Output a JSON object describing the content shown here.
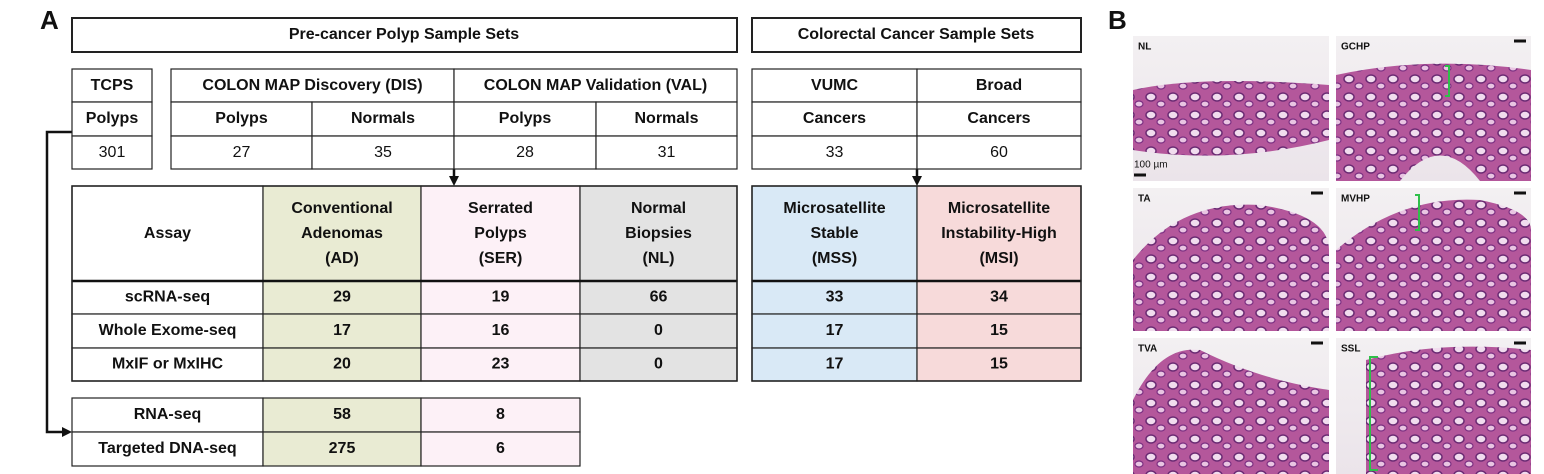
{
  "panel_labels": [
    "A",
    "B"
  ],
  "groups": [
    "Pre-cancer Polyp Sample Sets",
    "Colorectal Cancer Sample Sets"
  ],
  "sample_sets": {
    "tcps": {
      "title": "TCPS",
      "subheader": "Polyps",
      "count": 301
    },
    "colon_map": {
      "studies": [
        "COLON MAP Discovery (DIS)",
        "COLON MAP Validation (VAL)"
      ],
      "subheaders": [
        "Polyps",
        "Normals",
        "Polyps",
        "Normals"
      ],
      "counts": [
        27,
        35,
        28,
        31
      ]
    },
    "cancer": {
      "studies": [
        "VUMC",
        "Broad"
      ],
      "subheaders": [
        "Cancers",
        "Cancers"
      ],
      "counts": [
        33,
        60
      ]
    }
  },
  "precancer_assays": {
    "columns": [
      [
        "Assay"
      ],
      [
        "Conventional",
        "Adenomas",
        "(AD)"
      ],
      [
        "Serrated",
        "Polyps",
        "(SER)"
      ],
      [
        "Normal",
        "Biopsies",
        "(NL)"
      ]
    ],
    "rows": [
      {
        "label": "scRNA-seq",
        "values": [
          29,
          19,
          66
        ]
      },
      {
        "label": "Whole Exome-seq",
        "values": [
          17,
          16,
          0
        ]
      },
      {
        "label": "MxIF or MxIHC",
        "values": [
          20,
          23,
          0
        ]
      }
    ]
  },
  "cancer_assays": {
    "columns": [
      [
        "Microsatellite",
        "Stable",
        "(MSS)"
      ],
      [
        "Microsatellite",
        "Instability-High",
        "(MSI)"
      ]
    ],
    "rows": [
      [
        33,
        34
      ],
      [
        17,
        15
      ],
      [
        17,
        15
      ]
    ]
  },
  "bulk_assays": {
    "rows": [
      {
        "label": "RNA-seq",
        "values": [
          58,
          8
        ]
      },
      {
        "label": "Targeted DNA-seq",
        "values": [
          275,
          6
        ]
      }
    ]
  },
  "histology": {
    "panels": [
      "NL",
      "GCHP",
      "TA",
      "MVHP",
      "TVA",
      "SSL"
    ],
    "scale_bar": "100 µm"
  }
}
